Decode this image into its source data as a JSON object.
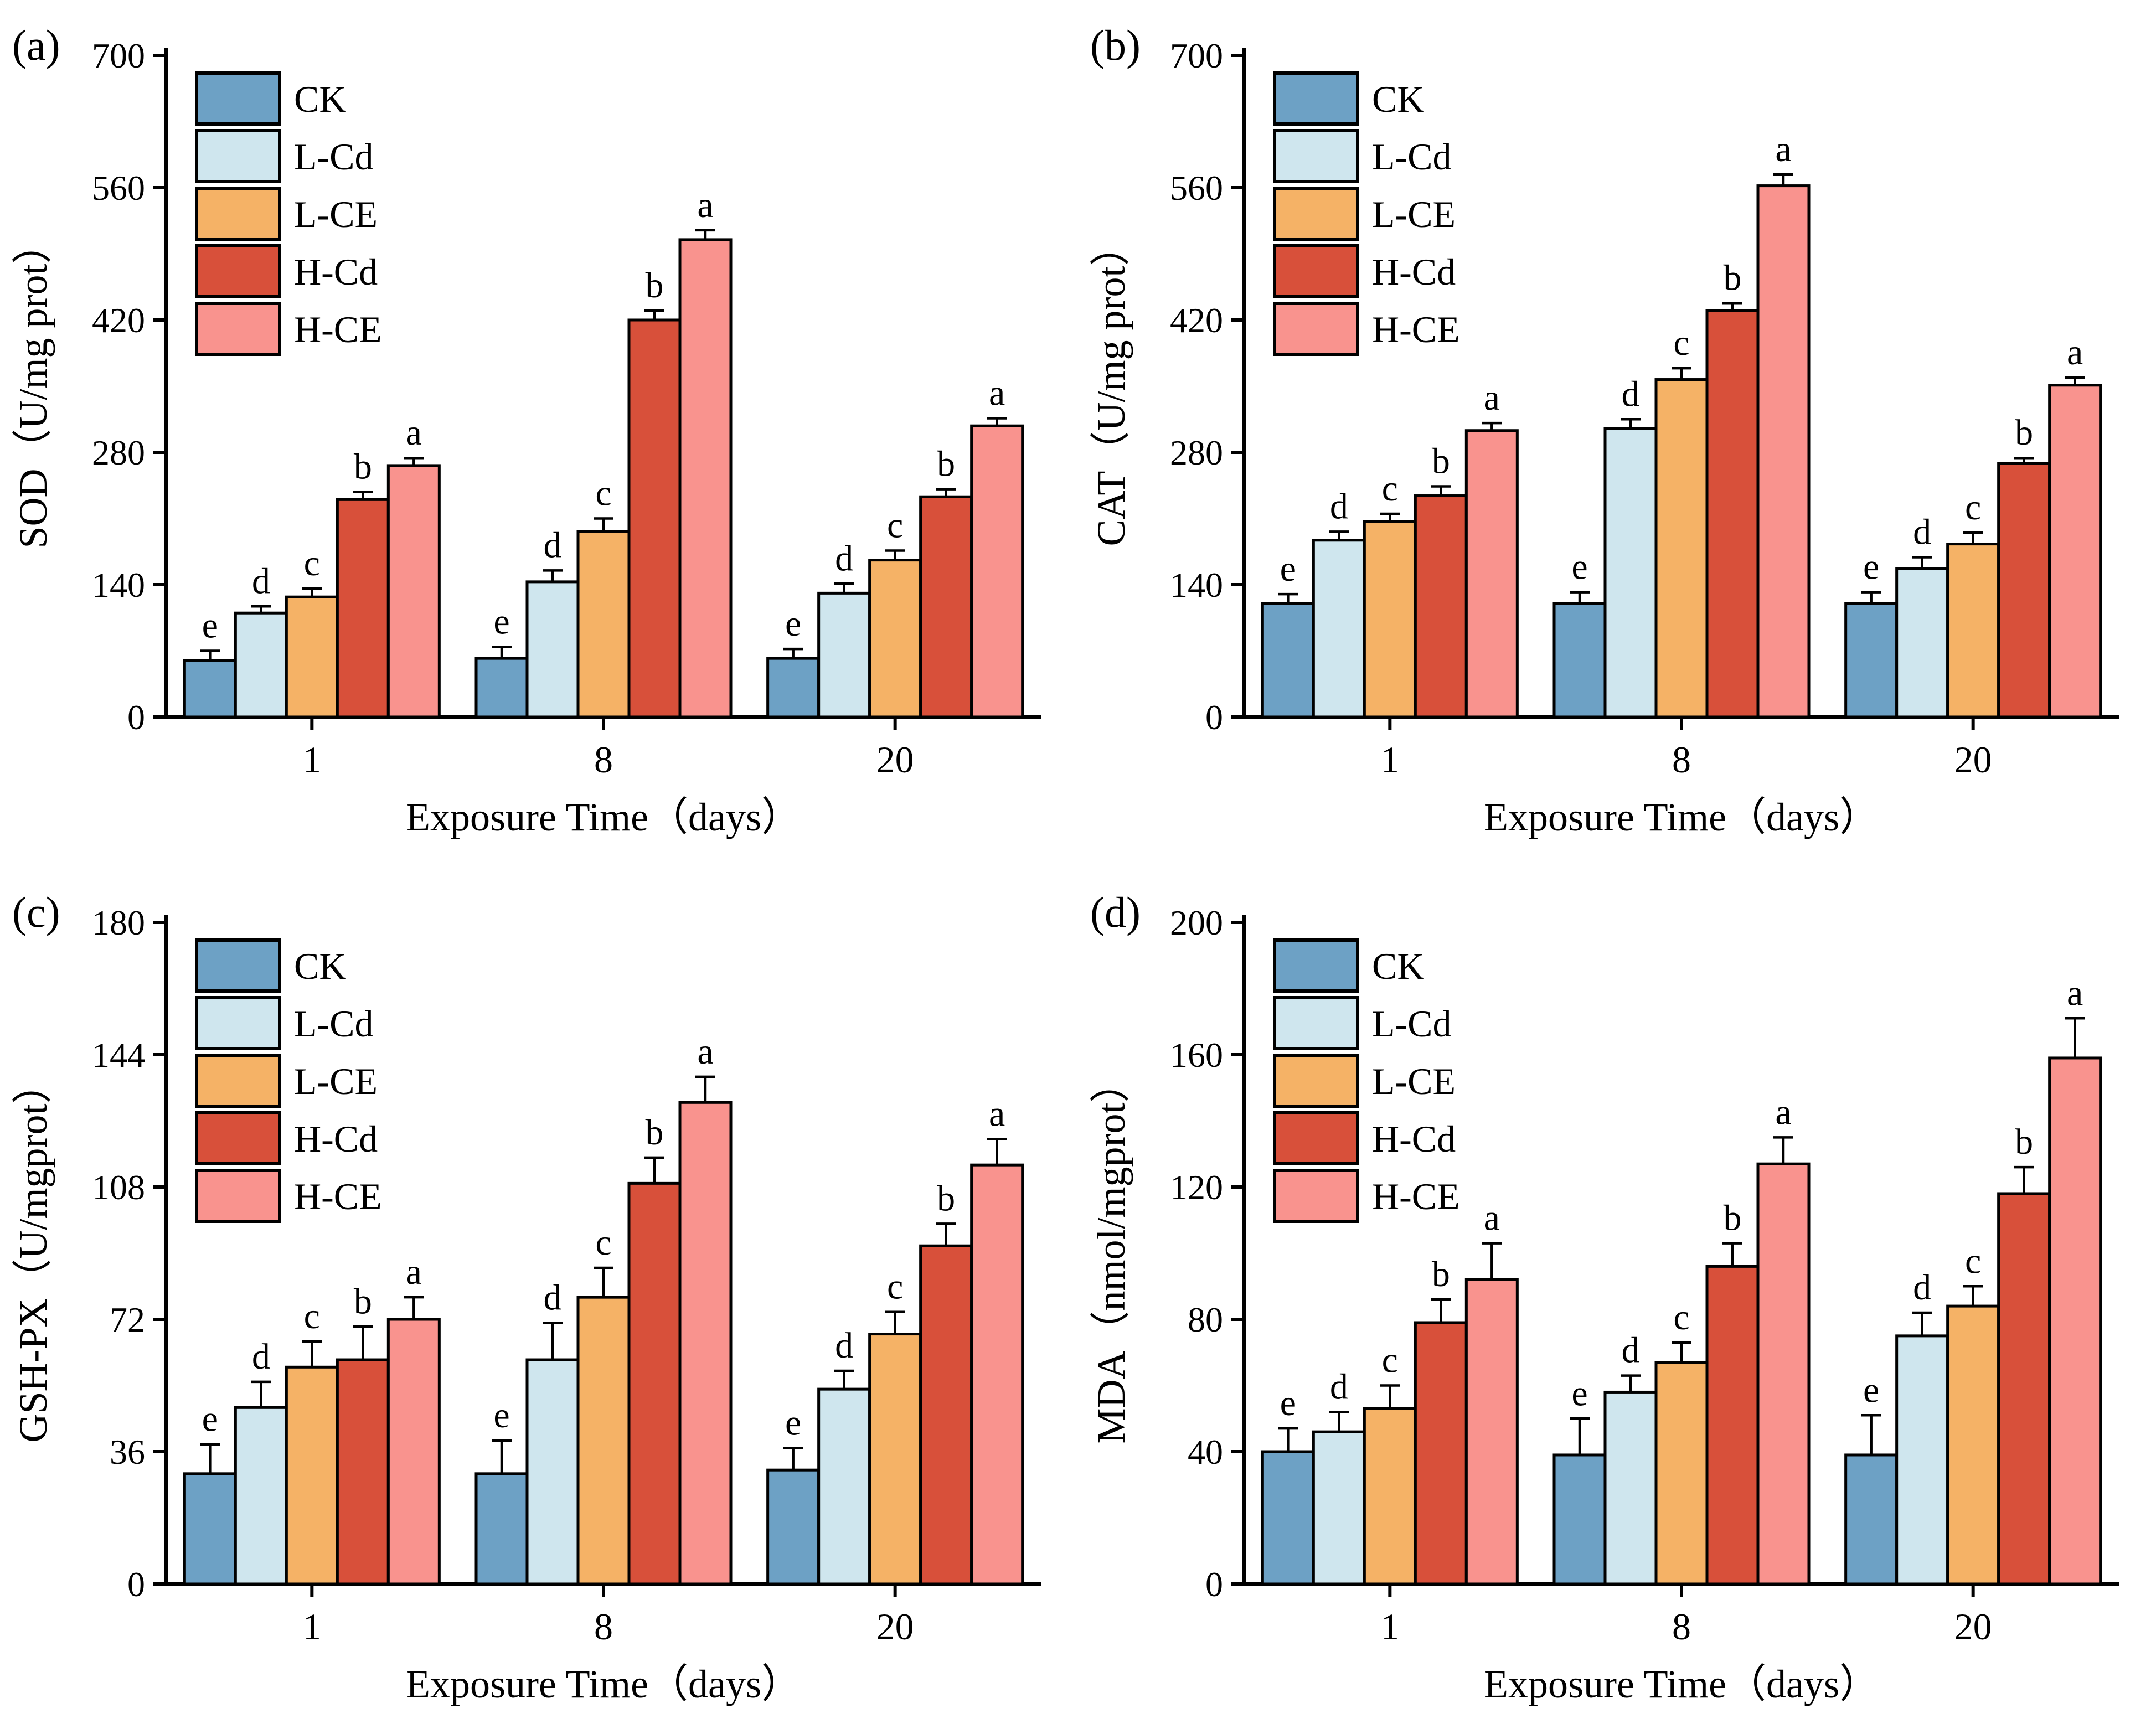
{
  "figure_caption_labels": [
    "(a)",
    "(b)",
    "(c)",
    "(d)"
  ],
  "legend_entries": [
    "CK",
    "L-Cd",
    "L-CE",
    "H-Cd",
    "H-CE"
  ],
  "xlabel_shared": "Exposure Time（days）",
  "categories_shared": [
    "1",
    "8",
    "20"
  ],
  "significance_letters": [
    "e",
    "d",
    "c",
    "b",
    "a"
  ],
  "colors": {
    "CK": "#6DA1C5",
    "L-Cd": "#CFE6EE",
    "L-CE": "#F5B266",
    "H-Cd": "#D8503A",
    "H-CE": "#F9938E",
    "axis": "#000000"
  },
  "chart_data": [
    {
      "type": "bar",
      "panel_label": "(a)",
      "title": "",
      "ylabel": "SOD（U/mg prot）",
      "xlabel": "Exposure Time（days）",
      "categories": [
        "1",
        "8",
        "20"
      ],
      "ylim": [
        0,
        700
      ],
      "yticks": [
        0,
        140,
        280,
        420,
        560,
        700
      ],
      "grid": false,
      "legend_position": "top-left",
      "sig_letters": [
        "e",
        "d",
        "c",
        "b",
        "a"
      ],
      "series": [
        {
          "name": "CK",
          "color": "#6DA1C5",
          "values": [
            60,
            62,
            62
          ],
          "errors": [
            10,
            12,
            10
          ]
        },
        {
          "name": "L-Cd",
          "color": "#CFE6EE",
          "values": [
            110,
            143,
            131
          ],
          "errors": [
            7,
            12,
            10
          ]
        },
        {
          "name": "L-CE",
          "color": "#F5B266",
          "values": [
            127,
            196,
            166
          ],
          "errors": [
            9,
            14,
            10
          ]
        },
        {
          "name": "H-Cd",
          "color": "#D8503A",
          "values": [
            230,
            420,
            233
          ],
          "errors": [
            8,
            10,
            8
          ]
        },
        {
          "name": "H-CE",
          "color": "#F9938E",
          "values": [
            266,
            505,
            308
          ],
          "errors": [
            8,
            10,
            8
          ]
        }
      ]
    },
    {
      "type": "bar",
      "panel_label": "(b)",
      "title": "",
      "ylabel": "CAT（U/mg prot）",
      "xlabel": "Exposure Time（days）",
      "categories": [
        "1",
        "8",
        "20"
      ],
      "ylim": [
        0,
        700
      ],
      "yticks": [
        0,
        140,
        280,
        420,
        560,
        700
      ],
      "grid": false,
      "legend_position": "top-left",
      "sig_letters": [
        "e",
        "d",
        "c",
        "b",
        "a"
      ],
      "series": [
        {
          "name": "CK",
          "color": "#6DA1C5",
          "values": [
            120,
            120,
            120
          ],
          "errors": [
            10,
            12,
            12
          ]
        },
        {
          "name": "L-Cd",
          "color": "#CFE6EE",
          "values": [
            187,
            305,
            157
          ],
          "errors": [
            9,
            10,
            12
          ]
        },
        {
          "name": "L-CE",
          "color": "#F5B266",
          "values": [
            207,
            357,
            183
          ],
          "errors": [
            8,
            12,
            12
          ]
        },
        {
          "name": "H-Cd",
          "color": "#D8503A",
          "values": [
            234,
            430,
            268
          ],
          "errors": [
            10,
            8,
            6
          ]
        },
        {
          "name": "H-CE",
          "color": "#F9938E",
          "values": [
            303,
            562,
            351
          ],
          "errors": [
            8,
            12,
            8
          ]
        }
      ]
    },
    {
      "type": "bar",
      "panel_label": "(c)",
      "title": "",
      "ylabel": "GSH-PX（U/mgprot）",
      "xlabel": "Exposure Time（days）",
      "categories": [
        "1",
        "8",
        "20"
      ],
      "ylim": [
        0,
        180
      ],
      "yticks": [
        0,
        36,
        72,
        108,
        144,
        180
      ],
      "grid": false,
      "legend_position": "top-left",
      "sig_letters": [
        "e",
        "d",
        "c",
        "b",
        "a"
      ],
      "series": [
        {
          "name": "CK",
          "color": "#6DA1C5",
          "values": [
            30,
            30,
            31
          ],
          "errors": [
            8,
            9,
            6
          ]
        },
        {
          "name": "L-Cd",
          "color": "#CFE6EE",
          "values": [
            48,
            61,
            53
          ],
          "errors": [
            7,
            10,
            5
          ]
        },
        {
          "name": "L-CE",
          "color": "#F5B266",
          "values": [
            59,
            78,
            68
          ],
          "errors": [
            7,
            8,
            6
          ]
        },
        {
          "name": "H-Cd",
          "color": "#D8503A",
          "values": [
            61,
            109,
            92
          ],
          "errors": [
            9,
            7,
            6
          ]
        },
        {
          "name": "H-CE",
          "color": "#F9938E",
          "values": [
            72,
            131,
            114
          ],
          "errors": [
            6,
            7,
            7
          ]
        }
      ]
    },
    {
      "type": "bar",
      "panel_label": "(d)",
      "title": "",
      "ylabel": "MDA（nmol/mgprot）",
      "xlabel": "Exposure Time（days）",
      "categories": [
        "1",
        "8",
        "20"
      ],
      "ylim": [
        0,
        200
      ],
      "yticks": [
        0,
        40,
        80,
        120,
        160,
        200
      ],
      "grid": false,
      "legend_position": "top-left",
      "sig_letters": [
        "e",
        "d",
        "c",
        "b",
        "a"
      ],
      "series": [
        {
          "name": "CK",
          "color": "#6DA1C5",
          "values": [
            40,
            39,
            39
          ],
          "errors": [
            7,
            11,
            12
          ]
        },
        {
          "name": "L-Cd",
          "color": "#CFE6EE",
          "values": [
            46,
            58,
            75
          ],
          "errors": [
            6,
            5,
            7
          ]
        },
        {
          "name": "L-CE",
          "color": "#F5B266",
          "values": [
            53,
            67,
            84
          ],
          "errors": [
            7,
            6,
            6
          ]
        },
        {
          "name": "H-Cd",
          "color": "#D8503A",
          "values": [
            79,
            96,
            118
          ],
          "errors": [
            7,
            7,
            8
          ]
        },
        {
          "name": "H-CE",
          "color": "#F9938E",
          "values": [
            92,
            127,
            159
          ],
          "errors": [
            11,
            8,
            12
          ]
        }
      ]
    }
  ]
}
